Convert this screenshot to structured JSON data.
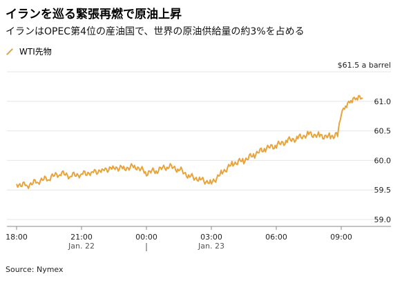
{
  "title": "イランを巡る緊張再燃で原油上昇",
  "subtitle": "イランはOPEC第4位の産油国で、世界の原油供給量の約3%を占める",
  "source": "Source: Nymex",
  "colors": {
    "series": "#e8a33a",
    "grid": "#e6e6e6",
    "axis": "#888888"
  },
  "legend_icon": "diagonal-line-icon",
  "chart_data": {
    "type": "line",
    "series": [
      {
        "name": "WTI先物",
        "x": [
          "18:00",
          "18:30",
          "19:00",
          "19:30",
          "20:00",
          "20:30",
          "21:00",
          "21:30",
          "22:00",
          "22:30",
          "23:00",
          "23:30",
          "00:00",
          "00:30",
          "01:00",
          "01:30",
          "02:00",
          "02:30",
          "03:00",
          "03:30",
          "04:00",
          "04:30",
          "05:00",
          "05:30",
          "06:00",
          "06:30",
          "07:00",
          "07:30",
          "08:00",
          "08:30",
          "08:50",
          "09:00",
          "09:15",
          "09:30",
          "09:45",
          "10:00"
        ],
        "values": [
          59.6,
          59.58,
          59.65,
          59.7,
          59.78,
          59.74,
          59.77,
          59.8,
          59.84,
          59.88,
          59.87,
          59.9,
          59.79,
          59.83,
          59.9,
          59.85,
          59.73,
          59.68,
          59.62,
          59.8,
          59.95,
          60.0,
          60.1,
          60.2,
          60.25,
          60.33,
          60.38,
          60.45,
          60.42,
          60.4,
          60.45,
          60.82,
          60.95,
          61.02,
          61.05,
          61.05
        ]
      }
    ],
    "y_unit_label": "$61.5 a barrel",
    "yticks": [
      59.0,
      59.5,
      60.0,
      60.5,
      61.0
    ],
    "ylim": [
      59.0,
      61.5
    ],
    "xticks": [
      "18:00",
      "21:00",
      "00:00",
      "03:00",
      "06:00",
      "09:00"
    ],
    "date_labels": [
      {
        "at": "21:00",
        "label": "Jan. 22"
      },
      {
        "at": "03:00",
        "label": "Jan. 23"
      }
    ],
    "grid": true,
    "legend_position": "top-left"
  }
}
